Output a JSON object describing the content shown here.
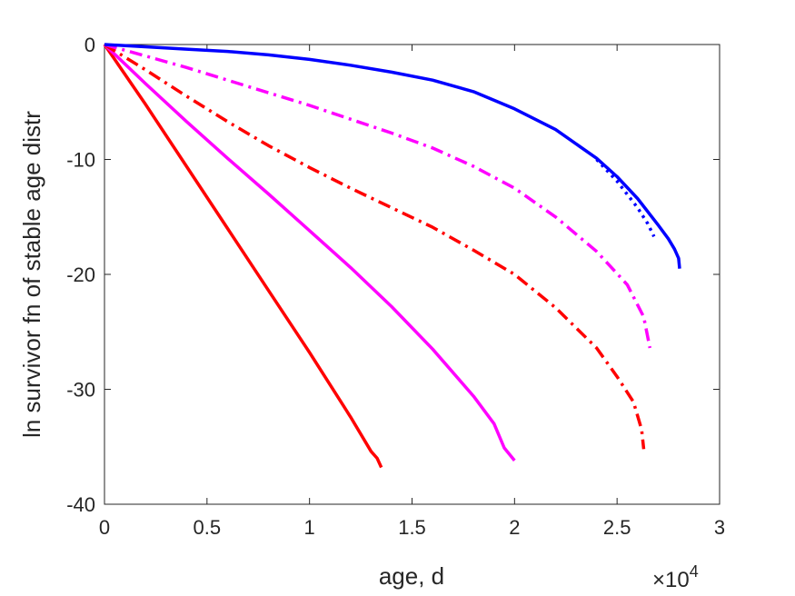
{
  "chart_data": {
    "type": "line",
    "xlabel": "age, d",
    "ylabel": "ln survivor fn of stable age distr",
    "xlim": [
      0,
      30000
    ],
    "ylim": [
      -40,
      0
    ],
    "x_ticks": [
      0,
      5000,
      10000,
      15000,
      20000,
      25000,
      30000
    ],
    "x_tick_labels": [
      "0",
      "0.5",
      "1",
      "1.5",
      "2",
      "2.5",
      "3"
    ],
    "y_ticks": [
      0,
      -10,
      -20,
      -30,
      -40
    ],
    "y_tick_labels": [
      "0",
      "-10",
      "-20",
      "-30",
      "-40"
    ],
    "x_multiplier": {
      "base": "×10",
      "exponent": "4"
    },
    "grid": false,
    "legend": "none",
    "series": [
      {
        "color": "#ff0000",
        "style": "solid",
        "x": [
          0,
          2000,
          4000,
          6000,
          8000,
          10000,
          12000,
          13000,
          13300,
          13500
        ],
        "y": [
          0,
          -5.2,
          -10.6,
          -16.0,
          -21.4,
          -26.8,
          -32.4,
          -35.4,
          -36.0,
          -36.8
        ]
      },
      {
        "color": "#ff00ff",
        "style": "solid",
        "x": [
          0,
          2000,
          4000,
          6000,
          8000,
          10000,
          12000,
          14000,
          16000,
          18000,
          19000,
          19500,
          20000
        ],
        "y": [
          0,
          -3.4,
          -6.7,
          -9.9,
          -13.0,
          -16.2,
          -19.4,
          -22.8,
          -26.5,
          -30.6,
          -33.0,
          -35.1,
          -36.2
        ]
      },
      {
        "color": "#ff0000",
        "style": "dashdot",
        "x": [
          0,
          2000,
          4000,
          6000,
          8000,
          10000,
          12000,
          14000,
          16000,
          18000,
          20000,
          22000,
          24000,
          25000,
          25800,
          26200,
          26300
        ],
        "y": [
          0,
          -2.2,
          -4.5,
          -6.7,
          -8.8,
          -10.7,
          -12.5,
          -14.2,
          -15.9,
          -17.9,
          -20.0,
          -22.9,
          -26.4,
          -28.9,
          -31.1,
          -33.5,
          -35.2
        ]
      },
      {
        "color": "#ff00ff",
        "style": "dashdot",
        "x": [
          0,
          2000,
          4000,
          6000,
          8000,
          10000,
          12000,
          14000,
          16000,
          18000,
          20000,
          22000,
          24000,
          25500,
          26300,
          26600
        ],
        "y": [
          0,
          -1.0,
          -2.0,
          -3.1,
          -4.2,
          -5.3,
          -6.5,
          -7.7,
          -9.0,
          -10.6,
          -12.5,
          -15.0,
          -18.0,
          -20.9,
          -23.7,
          -26.4
        ]
      },
      {
        "color": "#0000ff",
        "style": "dotted",
        "x": [
          24000,
          25000,
          26000,
          26500,
          26800
        ],
        "y": [
          -10.0,
          -11.9,
          -14.2,
          -15.6,
          -16.7
        ]
      },
      {
        "color": "#0000ff",
        "style": "solid",
        "x": [
          0,
          2000,
          4000,
          6000,
          8000,
          10000,
          12000,
          14000,
          16000,
          18000,
          20000,
          22000,
          24000,
          25000,
          26000,
          27000,
          27500,
          27800,
          28000,
          28050
        ],
        "y": [
          0,
          -0.2,
          -0.4,
          -0.6,
          -0.9,
          -1.3,
          -1.8,
          -2.4,
          -3.1,
          -4.1,
          -5.6,
          -7.4,
          -9.9,
          -11.5,
          -13.4,
          -15.7,
          -16.9,
          -17.8,
          -18.6,
          -19.5
        ]
      }
    ]
  }
}
